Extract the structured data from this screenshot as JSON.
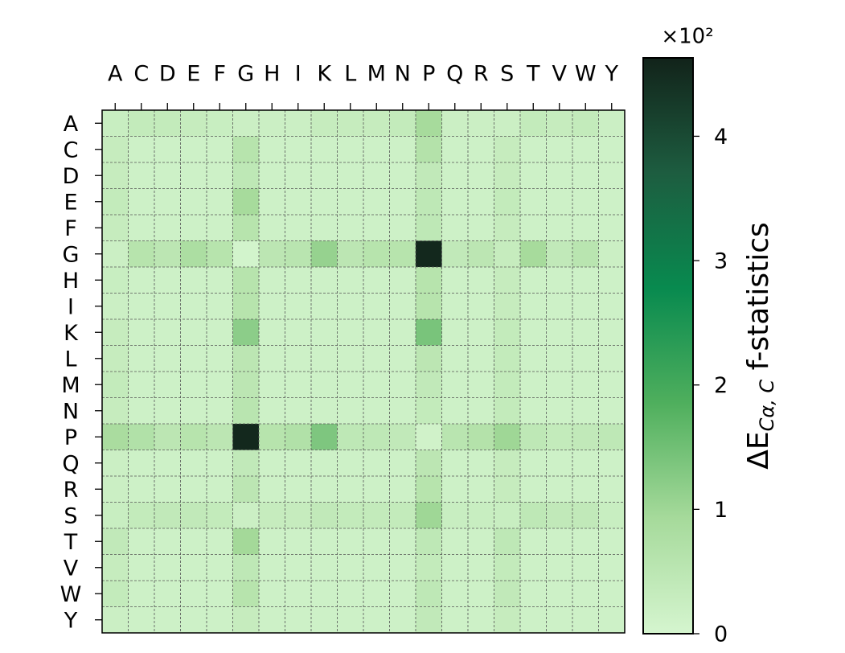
{
  "chart_data": {
    "type": "heatmap",
    "x_categories": [
      "A",
      "C",
      "D",
      "E",
      "F",
      "G",
      "H",
      "I",
      "K",
      "L",
      "M",
      "N",
      "P",
      "Q",
      "R",
      "S",
      "T",
      "V",
      "W",
      "Y"
    ],
    "y_categories": [
      "A",
      "C",
      "D",
      "E",
      "F",
      "G",
      "H",
      "I",
      "K",
      "L",
      "M",
      "N",
      "P",
      "Q",
      "R",
      "S",
      "T",
      "V",
      "W",
      "Y"
    ],
    "values": [
      [
        0.25,
        0.35,
        0.35,
        0.3,
        0.25,
        0.2,
        0.2,
        0.2,
        0.3,
        0.3,
        0.3,
        0.35,
        0.9,
        0.2,
        0.2,
        0.2,
        0.35,
        0.3,
        0.35,
        0.2
      ],
      [
        0.3,
        0.15,
        0.15,
        0.15,
        0.15,
        0.6,
        0.15,
        0.15,
        0.15,
        0.15,
        0.15,
        0.15,
        0.65,
        0.15,
        0.15,
        0.3,
        0.15,
        0.15,
        0.15,
        0.15
      ],
      [
        0.3,
        0.15,
        0.15,
        0.15,
        0.15,
        0.45,
        0.15,
        0.15,
        0.15,
        0.15,
        0.15,
        0.15,
        0.4,
        0.15,
        0.15,
        0.3,
        0.15,
        0.15,
        0.15,
        0.15
      ],
      [
        0.35,
        0.15,
        0.15,
        0.15,
        0.15,
        0.9,
        0.15,
        0.15,
        0.15,
        0.15,
        0.15,
        0.15,
        0.45,
        0.15,
        0.15,
        0.35,
        0.15,
        0.15,
        0.15,
        0.15
      ],
      [
        0.3,
        0.15,
        0.15,
        0.15,
        0.15,
        0.6,
        0.15,
        0.15,
        0.15,
        0.15,
        0.15,
        0.15,
        0.45,
        0.15,
        0.15,
        0.3,
        0.15,
        0.15,
        0.15,
        0.15
      ],
      [
        0.2,
        0.6,
        0.5,
        0.8,
        0.6,
        0.05,
        0.5,
        0.55,
        1.1,
        0.5,
        0.6,
        0.6,
        4.55,
        0.4,
        0.5,
        0.3,
        0.9,
        0.4,
        0.55,
        0.2
      ],
      [
        0.25,
        0.15,
        0.15,
        0.15,
        0.15,
        0.6,
        0.15,
        0.15,
        0.15,
        0.15,
        0.15,
        0.15,
        0.6,
        0.15,
        0.15,
        0.3,
        0.15,
        0.15,
        0.15,
        0.15
      ],
      [
        0.2,
        0.15,
        0.15,
        0.15,
        0.15,
        0.6,
        0.15,
        0.15,
        0.15,
        0.15,
        0.15,
        0.15,
        0.6,
        0.15,
        0.15,
        0.3,
        0.15,
        0.15,
        0.15,
        0.15
      ],
      [
        0.3,
        0.15,
        0.15,
        0.15,
        0.15,
        1.2,
        0.15,
        0.15,
        0.15,
        0.15,
        0.15,
        0.15,
        1.4,
        0.15,
        0.15,
        0.35,
        0.15,
        0.15,
        0.15,
        0.15
      ],
      [
        0.3,
        0.15,
        0.15,
        0.15,
        0.15,
        0.5,
        0.15,
        0.15,
        0.15,
        0.15,
        0.15,
        0.15,
        0.5,
        0.15,
        0.15,
        0.35,
        0.15,
        0.15,
        0.15,
        0.15
      ],
      [
        0.35,
        0.15,
        0.15,
        0.15,
        0.15,
        0.5,
        0.15,
        0.15,
        0.15,
        0.15,
        0.15,
        0.15,
        0.4,
        0.15,
        0.15,
        0.35,
        0.15,
        0.15,
        0.15,
        0.15
      ],
      [
        0.3,
        0.15,
        0.15,
        0.15,
        0.15,
        0.55,
        0.15,
        0.15,
        0.15,
        0.15,
        0.15,
        0.15,
        0.35,
        0.15,
        0.15,
        0.35,
        0.15,
        0.15,
        0.15,
        0.15
      ],
      [
        0.85,
        0.7,
        0.5,
        0.6,
        0.5,
        4.55,
        0.6,
        0.7,
        1.35,
        0.45,
        0.45,
        0.4,
        0.1,
        0.55,
        0.65,
        1.0,
        0.45,
        0.35,
        0.4,
        0.45
      ],
      [
        0.2,
        0.15,
        0.15,
        0.15,
        0.15,
        0.4,
        0.15,
        0.15,
        0.15,
        0.15,
        0.15,
        0.15,
        0.5,
        0.15,
        0.15,
        0.3,
        0.15,
        0.15,
        0.15,
        0.15
      ],
      [
        0.2,
        0.15,
        0.15,
        0.15,
        0.15,
        0.5,
        0.15,
        0.15,
        0.15,
        0.15,
        0.15,
        0.15,
        0.6,
        0.15,
        0.15,
        0.3,
        0.15,
        0.15,
        0.15,
        0.15
      ],
      [
        0.25,
        0.35,
        0.4,
        0.4,
        0.35,
        0.2,
        0.3,
        0.3,
        0.4,
        0.35,
        0.35,
        0.35,
        1.0,
        0.25,
        0.25,
        0.25,
        0.45,
        0.4,
        0.4,
        0.25
      ],
      [
        0.4,
        0.15,
        0.15,
        0.15,
        0.15,
        0.95,
        0.15,
        0.15,
        0.15,
        0.15,
        0.15,
        0.15,
        0.45,
        0.15,
        0.15,
        0.45,
        0.15,
        0.15,
        0.15,
        0.15
      ],
      [
        0.3,
        0.15,
        0.15,
        0.15,
        0.15,
        0.45,
        0.15,
        0.15,
        0.15,
        0.15,
        0.15,
        0.15,
        0.35,
        0.15,
        0.15,
        0.35,
        0.15,
        0.15,
        0.15,
        0.15
      ],
      [
        0.35,
        0.15,
        0.15,
        0.15,
        0.15,
        0.6,
        0.15,
        0.15,
        0.15,
        0.15,
        0.15,
        0.15,
        0.45,
        0.15,
        0.15,
        0.4,
        0.15,
        0.15,
        0.15,
        0.15
      ],
      [
        0.2,
        0.15,
        0.15,
        0.15,
        0.15,
        0.3,
        0.15,
        0.15,
        0.15,
        0.15,
        0.15,
        0.15,
        0.4,
        0.15,
        0.15,
        0.3,
        0.15,
        0.15,
        0.15,
        0.15
      ]
    ],
    "clim": [
      0,
      4.63
    ],
    "cticks": [
      0,
      1,
      2,
      3,
      4
    ],
    "colorbar_offset": "×10²",
    "colorbar_label": "ΔE",
    "colorbar_label_sub": "Cα, C",
    "colorbar_label_rest": " f-statistics",
    "colormap": [
      "#d5f5cf",
      "#a6da9b",
      "#4faf5d",
      "#088a4f",
      "#1d5d40",
      "#12231a"
    ],
    "grid": true
  }
}
